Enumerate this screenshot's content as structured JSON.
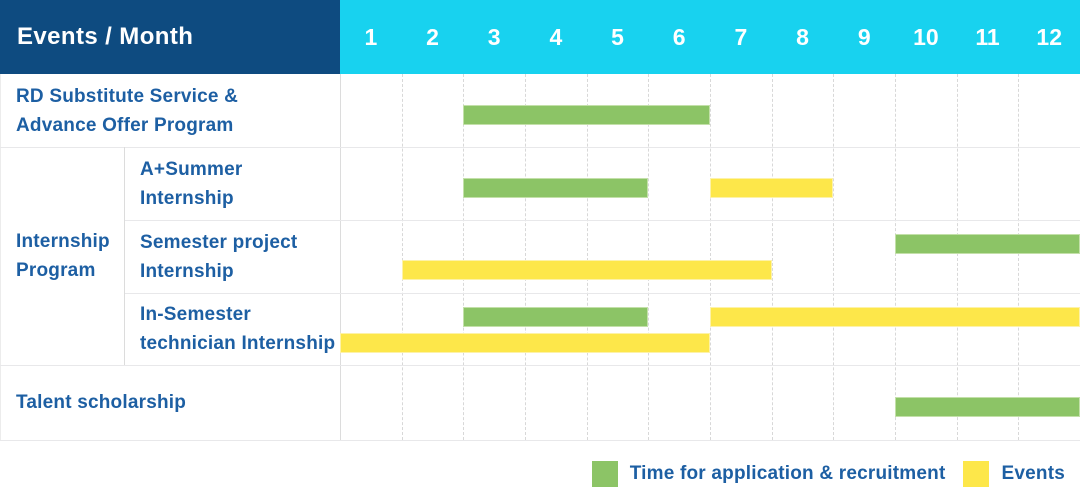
{
  "header": {
    "corner_label": "Events / Month"
  },
  "colors": {
    "header_blue": "#0e4b80",
    "header_cyan": "#18d2ef",
    "label_text_blue": "#1d5fa3",
    "recruitment_green": "#8cc466",
    "event_yellow": "#fde74a"
  },
  "chart_data": {
    "type": "gantt",
    "title": "Events / Month",
    "x_categories": [
      "1",
      "2",
      "3",
      "4",
      "5",
      "6",
      "7",
      "8",
      "9",
      "10",
      "11",
      "12"
    ],
    "x_range": [
      1,
      12
    ],
    "grid": true,
    "legend_position": "bottom-right",
    "legend": [
      {
        "key": "recruitment",
        "label": "Time for application & recruitment",
        "color": "#8cc466"
      },
      {
        "key": "event",
        "label": "Events",
        "color": "#fde74a"
      }
    ],
    "groups": [
      {
        "name": "internship-program",
        "label_lines": [
          "Internship",
          "Program"
        ],
        "row_start_index": 1,
        "row_end_index": 3
      }
    ],
    "rows": [
      {
        "name": "rd-substitute-service-advance-offer-program",
        "label_lines": [
          "RD Substitute Service &",
          "Advance Offer Program"
        ],
        "in_group": false,
        "lines": [
          [
            {
              "kind": "recruitment",
              "from_month": 3,
              "to_month": 6
            }
          ]
        ]
      },
      {
        "name": "a-plus-summer-internship",
        "label_lines": [
          "A+Summer",
          "Internship"
        ],
        "in_group": true,
        "lines": [
          [
            {
              "kind": "recruitment",
              "from_month": 3,
              "to_month": 5
            },
            {
              "kind": "event",
              "from_month": 7,
              "to_month": 8
            }
          ]
        ]
      },
      {
        "name": "semester-project-internship",
        "label_lines": [
          "Semester project",
          "Internship"
        ],
        "in_group": true,
        "lines": [
          [
            {
              "kind": "recruitment",
              "from_month": 10,
              "to_month": 12
            }
          ],
          [
            {
              "kind": "event",
              "from_month": 2,
              "to_month": 7
            }
          ]
        ]
      },
      {
        "name": "in-semester-technician-internship",
        "label_lines": [
          "In-Semester",
          "technician Internship"
        ],
        "in_group": true,
        "lines": [
          [
            {
              "kind": "recruitment",
              "from_month": 3,
              "to_month": 5
            },
            {
              "kind": "event",
              "from_month": 7,
              "to_month": 12
            }
          ],
          [
            {
              "kind": "event",
              "from_month": 1,
              "to_month": 6
            }
          ]
        ]
      },
      {
        "name": "talent-scholarship",
        "label_lines": [
          "Talent scholarship"
        ],
        "in_group": false,
        "lines": [
          [
            {
              "kind": "recruitment",
              "from_month": 10,
              "to_month": 12
            }
          ]
        ]
      }
    ]
  }
}
